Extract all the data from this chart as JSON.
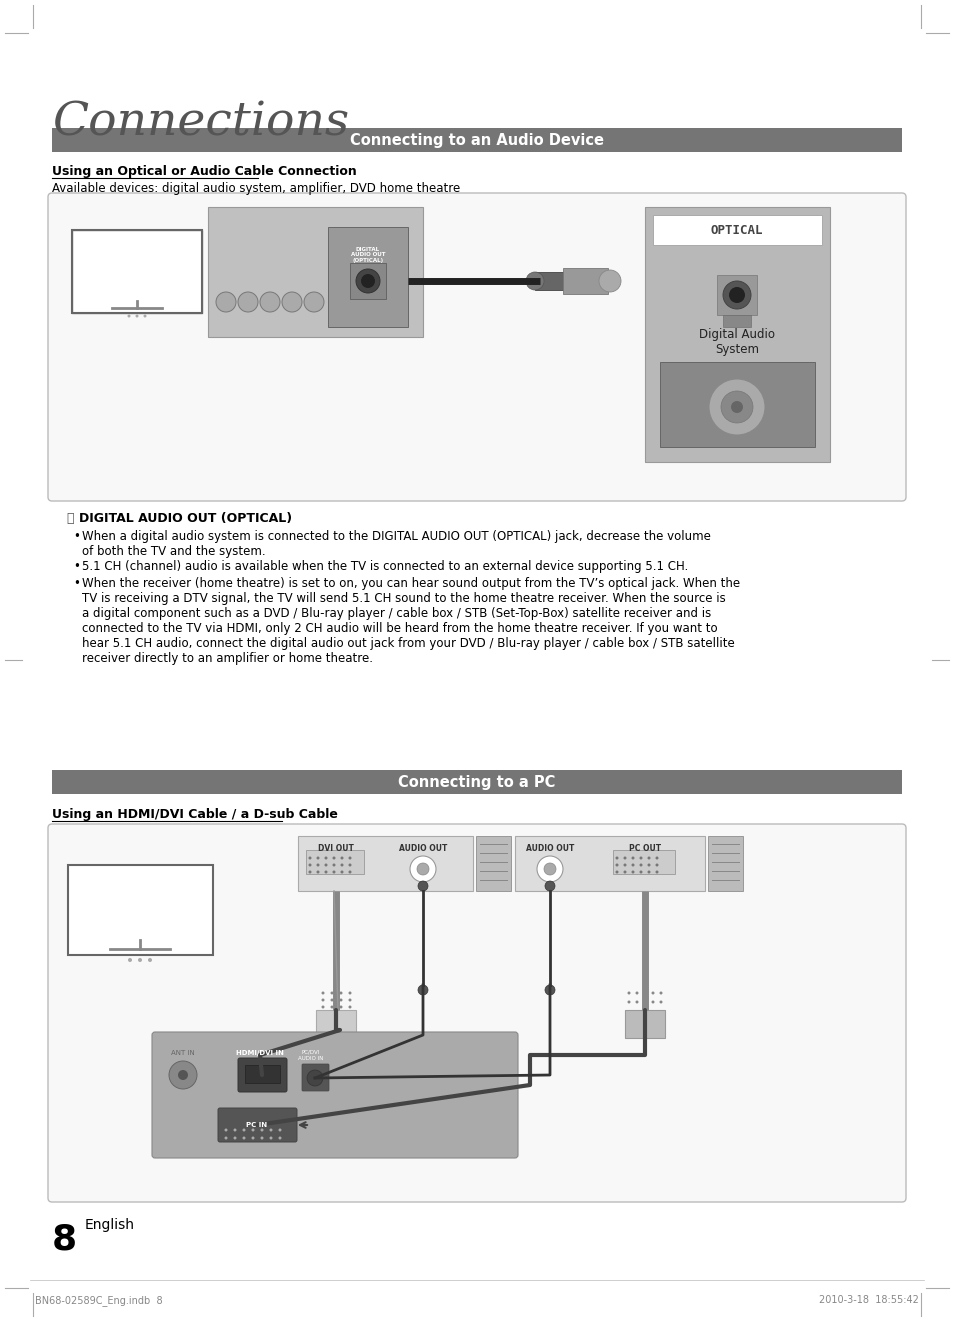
{
  "page_bg": "#ffffff",
  "title": "Connections",
  "title_fontsize": 34,
  "title_color": "#555555",
  "header1_text": "Connecting to an Audio Device",
  "header1_bg": "#757575",
  "header1_fg": "#ffffff",
  "header1_fontsize": 10.5,
  "section1_subtitle": "Using an Optical or Audio Cable Connection",
  "section1_desc": "Available devices: digital audio system, amplifier, DVD home theatre",
  "header2_text": "Connecting to a PC",
  "header2_bg": "#757575",
  "header2_fg": "#ffffff",
  "header2_fontsize": 10.5,
  "section2_subtitle": "Using an HDMI/DVI Cable / a D-sub Cable",
  "page_number": "8",
  "page_lang": "English",
  "footer_left": "BN68-02589C_Eng.indb  8",
  "footer_right": "2010-3-18  18:55:42",
  "box_bg": "#f8f8f8",
  "box_edge": "#bbbbbb",
  "text_color": "#000000",
  "body_fontsize": 8.5,
  "note_icon": "⑂",
  "bullet_char": "•",
  "note_title": "DIGITAL AUDIO OUT (OPTICAL)",
  "bullet1_pre": "When a digital audio system is connected to the ",
  "bullet1_bold": "DIGITAL AUDIO OUT (OPTICAL)",
  "bullet1_post": " jack, decrease the volume\nof both the TV and the system.",
  "bullet2": "5.1 CH (channel) audio is available when the TV is connected to an external device supporting 5.1 CH.",
  "bullet3": "When the receiver (home theatre) is set to on, you can hear sound output from the TV’s optical jack. When the\nTV is receiving a DTV signal, the TV will send 5.1 CH sound to the home theatre receiver. When the source is\na digital component such as a DVD / Blu-ray player / cable box / STB (Set-Top-Box) satellite receiver and is\nconnected to the TV via HDMI, only 2 CH audio will be heard from the home theatre receiver. If you want to\nhear 5.1 CH audio, connect the digital audio out jack from your DVD / Blu-ray player / cable box / STB satellite\nreceiver directly to an amplifier or home theatre.",
  "mark_color": "#aaaaaa",
  "gray_panel": "#aaaaaa",
  "dark_panel": "#888888",
  "mid_gray": "#999999",
  "light_gray": "#cccccc",
  "cable_dark": "#333333",
  "cable_mid": "#666666"
}
